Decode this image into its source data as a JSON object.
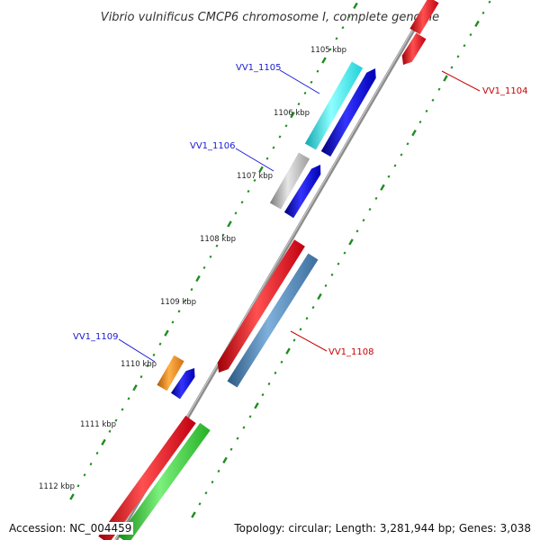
{
  "title": "Vibrio vulnificus CMCP6 chromosome I, complete genome",
  "footer": {
    "accession": "Accession: NC_004459",
    "topology": "Topology: circular; Length: 3,281,944 bp; Genes: 3,038"
  },
  "ticks": [
    "1105 kbp",
    "1106 kbp",
    "1107 kbp",
    "1108 kbp",
    "1109 kbp",
    "1110 kbp",
    "1111 kbp",
    "1112 kbp"
  ],
  "gene_labels": {
    "vv1_1105": "VV1_1105",
    "vv1_1106": "VV1_1106",
    "vv1_1109": "VV1_1109",
    "vv1_1104": "VV1_1104",
    "vv1_1108": "VV1_1108"
  },
  "colors": {
    "red": "#e8141e",
    "blue": "#1010dc",
    "cyan": "#1ee6e6",
    "gray": "#b8b8b8",
    "orange": "#f08c14",
    "steelblue": "#4682b4",
    "green": "#32c832",
    "backbone": "#8c8c8c",
    "dots": "#1e8c1e"
  }
}
